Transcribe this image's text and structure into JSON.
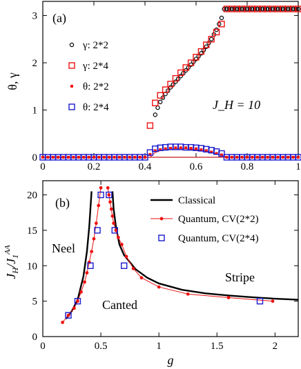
{
  "chart_data": [
    {
      "type": "scatter",
      "panel": "(a)",
      "annotation": "J_H = 10",
      "xlabel": "",
      "ylabel": "θ, γ",
      "xlim": [
        0,
        1
      ],
      "ylim": [
        0,
        3.3
      ],
      "xticks": [
        "0",
        "0.2",
        "0.4",
        "0.6",
        "0.8",
        "1"
      ],
      "yticks": [
        "0",
        "1",
        "2",
        "3"
      ],
      "legend_position": "left",
      "series": [
        {
          "name": "γ: 2*2",
          "marker": "open-circle",
          "color": "#000000",
          "x": [
            0.44,
            0.45,
            0.46,
            0.47,
            0.48,
            0.49,
            0.5,
            0.51,
            0.52,
            0.53,
            0.54,
            0.55,
            0.56,
            0.57,
            0.58,
            0.59,
            0.6,
            0.61,
            0.62,
            0.63,
            0.64,
            0.65,
            0.66,
            0.67,
            0.68,
            0.69,
            0.7,
            0.71,
            0.72,
            0.73,
            0.74,
            0.75,
            0.76,
            0.77,
            0.78,
            0.79,
            0.8,
            0.81,
            0.82,
            0.83,
            0.84,
            0.85,
            0.86,
            0.87,
            0.88,
            0.89,
            0.9,
            0.91,
            0.92,
            0.93,
            0.94,
            0.95,
            0.96,
            0.97,
            0.98,
            0.99,
            1.0
          ],
          "y": [
            0.9,
            1.05,
            1.17,
            1.26,
            1.34,
            1.41,
            1.48,
            1.54,
            1.6,
            1.66,
            1.72,
            1.78,
            1.84,
            1.9,
            1.96,
            2.02,
            2.08,
            2.14,
            2.2,
            2.27,
            2.34,
            2.42,
            2.5,
            2.6,
            2.7,
            2.82,
            2.95,
            3.14,
            3.14,
            3.14,
            3.14,
            3.14,
            3.14,
            3.14,
            3.14,
            3.14,
            3.14,
            3.14,
            3.14,
            3.14,
            3.14,
            3.14,
            3.14,
            3.14,
            3.14,
            3.14,
            3.14,
            3.14,
            3.14,
            3.14,
            3.14,
            3.14,
            3.14,
            3.14,
            3.14,
            3.14,
            3.14
          ]
        },
        {
          "name": "γ: 2*4",
          "marker": "open-square",
          "color": "#ee1111",
          "x": [
            0.42,
            0.44,
            0.46,
            0.48,
            0.5,
            0.52,
            0.54,
            0.56,
            0.58,
            0.6,
            0.62,
            0.64,
            0.66,
            0.68,
            0.7,
            0.72,
            0.74,
            0.76,
            0.78,
            0.8,
            0.82,
            0.84,
            0.86,
            0.88,
            0.9,
            0.92,
            0.94,
            0.96,
            0.98,
            1.0
          ],
          "y": [
            0.67,
            1.15,
            1.31,
            1.43,
            1.55,
            1.67,
            1.79,
            1.9,
            2.0,
            2.12,
            2.24,
            2.38,
            2.5,
            2.65,
            2.82,
            3.14,
            3.14,
            3.14,
            3.14,
            3.14,
            3.14,
            3.14,
            3.14,
            3.14,
            3.14,
            3.14,
            3.14,
            3.14,
            3.14,
            3.14
          ]
        },
        {
          "name": "θ: 2*2",
          "marker": "filled-small-square",
          "color": "#ee1111",
          "x": [
            0.0,
            0.02,
            0.04,
            0.06,
            0.08,
            0.1,
            0.12,
            0.14,
            0.16,
            0.18,
            0.2,
            0.22,
            0.24,
            0.26,
            0.28,
            0.3,
            0.32,
            0.34,
            0.36,
            0.38,
            0.4,
            0.42,
            0.44,
            0.46,
            0.48,
            0.5,
            0.52,
            0.54,
            0.56,
            0.58,
            0.6,
            0.62,
            0.64,
            0.66,
            0.68,
            0.7,
            0.72,
            0.74,
            0.76,
            0.78,
            0.8,
            0.82,
            0.84,
            0.86,
            0.88,
            0.9,
            0.92,
            0.94,
            0.96,
            0.98,
            1.0
          ],
          "y": [
            0,
            0,
            0,
            0,
            0,
            0,
            0,
            0,
            0,
            0,
            0,
            0,
            0,
            0,
            0,
            0,
            0,
            0,
            0,
            0,
            0,
            0.06,
            0.14,
            0.16,
            0.18,
            0.19,
            0.2,
            0.2,
            0.2,
            0.19,
            0.18,
            0.16,
            0.14,
            0.11,
            0.08,
            0.05,
            0.0,
            0,
            0,
            0,
            0,
            0,
            0,
            0,
            0,
            0,
            0,
            0,
            0,
            0,
            0
          ]
        },
        {
          "name": "θ: 2*4",
          "marker": "open-square",
          "color": "#1a1acc",
          "x": [
            0.0,
            0.02,
            0.04,
            0.06,
            0.08,
            0.1,
            0.12,
            0.14,
            0.16,
            0.18,
            0.2,
            0.22,
            0.24,
            0.26,
            0.28,
            0.3,
            0.32,
            0.34,
            0.36,
            0.38,
            0.4,
            0.42,
            0.44,
            0.46,
            0.48,
            0.5,
            0.52,
            0.54,
            0.56,
            0.58,
            0.6,
            0.62,
            0.64,
            0.66,
            0.68,
            0.7,
            0.72,
            0.74,
            0.76,
            0.78,
            0.8,
            0.82,
            0.84,
            0.86,
            0.88,
            0.9,
            0.92,
            0.94,
            0.96,
            0.98,
            1.0
          ],
          "y": [
            0,
            0,
            0,
            0,
            0,
            0,
            0,
            0,
            0,
            0,
            0,
            0,
            0,
            0,
            0,
            0,
            0,
            0,
            0,
            0,
            0,
            0.1,
            0.18,
            0.2,
            0.21,
            0.22,
            0.22,
            0.22,
            0.21,
            0.21,
            0.2,
            0.19,
            0.17,
            0.15,
            0.12,
            0.08,
            0.0,
            0,
            0,
            0,
            0,
            0,
            0,
            0,
            0,
            0,
            0,
            0,
            0,
            0,
            0
          ]
        }
      ],
      "thin_line": {
        "x": [
          0.42,
          0.44,
          0.46,
          0.48,
          0.5,
          0.52,
          0.54,
          0.56,
          0.58,
          0.6,
          0.62,
          0.64,
          0.66,
          0.68,
          0.7,
          0.72
        ],
        "y": [
          0.0,
          0.1,
          0.14,
          0.16,
          0.17,
          0.18,
          0.18,
          0.18,
          0.17,
          0.16,
          0.15,
          0.13,
          0.1,
          0.07,
          0.04,
          0.0
        ]
      }
    },
    {
      "type": "line",
      "panel": "(b)",
      "xlabel": "g",
      "ylabel": "J_H/J_1^AA",
      "xlim": [
        0,
        2.2
      ],
      "ylim": [
        0,
        22
      ],
      "xticks": [
        "0",
        "0.5",
        "1",
        "1.5",
        "2"
      ],
      "yticks": [
        "0",
        "5",
        "10",
        "15",
        "20"
      ],
      "legend_position": "top-right",
      "region_labels": [
        "Neel",
        "Canted",
        "Stripe"
      ],
      "series": [
        {
          "name": "Classical",
          "style": "thick-line",
          "color": "#000000",
          "segments": [
            {
              "x": [
                0.2,
                0.25,
                0.3,
                0.35,
                0.38,
                0.4,
                0.41,
                0.42
              ],
              "y": [
                2.5,
                3.6,
                5.2,
                8.5,
                12.0,
                15.5,
                18.0,
                20.5
              ]
            },
            {
              "x": [
                0.6,
                0.61,
                0.63,
                0.66,
                0.7,
                0.8,
                0.9,
                1.0,
                1.2,
                1.4,
                1.6,
                1.8,
                2.0,
                2.2
              ],
              "y": [
                20.5,
                18.0,
                15.5,
                13.0,
                11.5,
                9.5,
                8.3,
                7.5,
                6.6,
                6.1,
                5.8,
                5.55,
                5.35,
                5.2
              ]
            }
          ]
        },
        {
          "name": "Quantum, CV(2*2)",
          "style": "line-dot",
          "color": "#ee1111",
          "segments": [
            {
              "x": [
                0.17,
                0.22,
                0.27,
                0.3,
                0.33,
                0.36,
                0.38,
                0.4,
                0.42,
                0.44,
                0.46,
                0.48,
                0.5
              ],
              "y": [
                2.0,
                3.0,
                4.0,
                5.0,
                6.3,
                7.7,
                9.0,
                10.5,
                12.0,
                13.8,
                16.0,
                18.5,
                21.0
              ]
            },
            {
              "x": [
                0.56,
                0.57,
                0.58,
                0.59,
                0.6,
                0.61,
                0.63,
                0.65,
                0.68,
                0.72,
                0.78,
                0.85,
                1.0,
                1.25,
                1.6,
                1.98
              ],
              "y": [
                21.0,
                20.0,
                19.0,
                18.0,
                17.0,
                16.0,
                15.0,
                14.0,
                13.0,
                11.3,
                9.6,
                8.3,
                7.0,
                6.0,
                5.5,
                5.0
              ]
            }
          ]
        },
        {
          "name": "Quantum, CV(2*4)",
          "style": "open-square",
          "color": "#1a1acc",
          "x": [
            0.22,
            0.3,
            0.41,
            0.47,
            0.5,
            0.57,
            0.62,
            0.7,
            1.87
          ],
          "y": [
            3.0,
            5.0,
            10.0,
            15.0,
            20.0,
            20.0,
            15.0,
            10.0,
            5.0
          ]
        }
      ]
    }
  ]
}
